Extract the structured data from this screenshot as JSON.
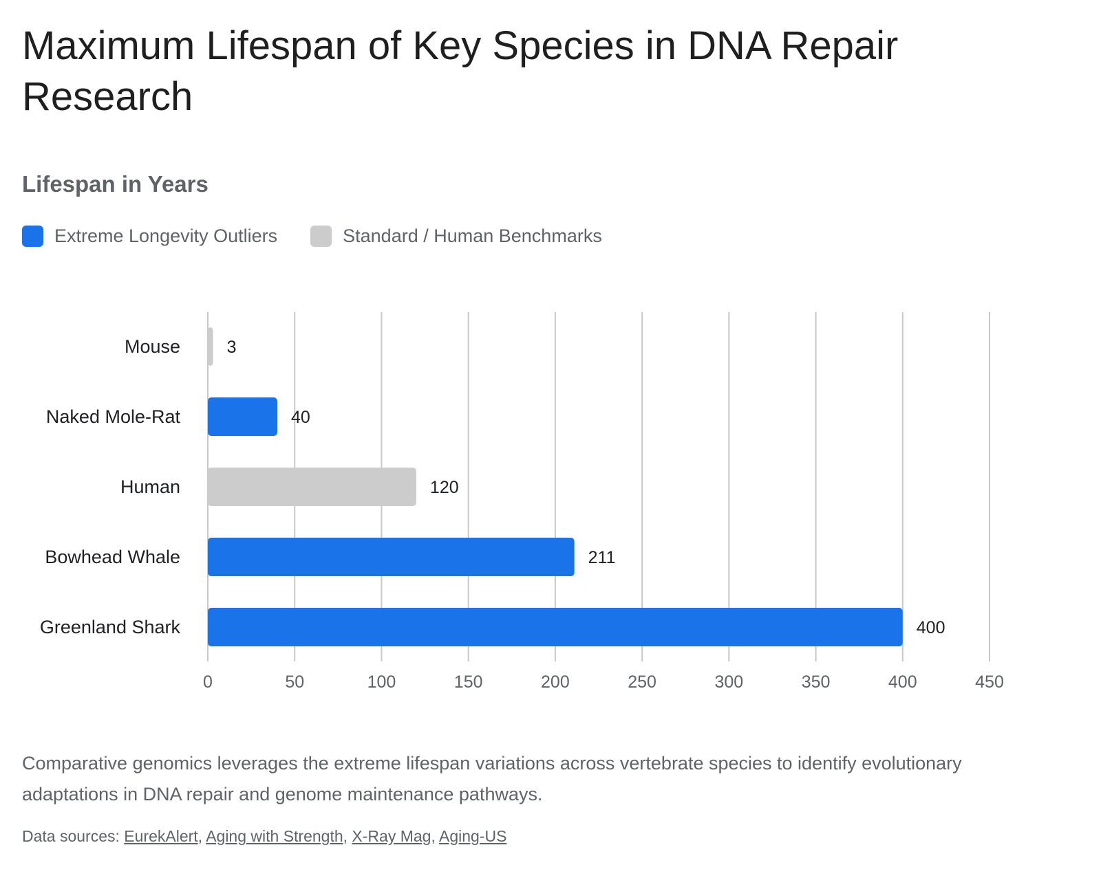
{
  "header": {
    "title": "Maximum Lifespan of Key Species in DNA Repair Research",
    "subtitle": "Lifespan in Years"
  },
  "legend": {
    "items": [
      {
        "label": "Extreme Longevity Outliers",
        "color": "#1a73e8"
      },
      {
        "label": "Standard / Human Benchmarks",
        "color": "#cccccc"
      }
    ]
  },
  "chart_data": {
    "type": "bar",
    "orientation": "horizontal",
    "categories": [
      "Mouse",
      "Naked Mole-Rat",
      "Human",
      "Bowhead Whale",
      "Greenland Shark"
    ],
    "values": [
      3,
      40,
      120,
      211,
      400
    ],
    "groups": [
      "Standard / Human Benchmarks",
      "Extreme Longevity Outliers",
      "Standard / Human Benchmarks",
      "Extreme Longevity Outliers",
      "Extreme Longevity Outliers"
    ],
    "colors": [
      "#cccccc",
      "#1a73e8",
      "#cccccc",
      "#1a73e8",
      "#1a73e8"
    ],
    "data_labels": [
      "3",
      "40",
      "120",
      "211",
      "400"
    ],
    "x_ticks": [
      0,
      50,
      100,
      150,
      200,
      250,
      300,
      350,
      400,
      450
    ],
    "xlim": [
      0,
      450
    ],
    "grid": "vertical",
    "legend_position": "top-left"
  },
  "footer": {
    "description": "Comparative genomics leverages the extreme lifespan variations across vertebrate species to identify evolutionary adaptations in DNA repair and genome maintenance pathways.",
    "sources_prefix": "Data sources: ",
    "sources": [
      "EurekAlert",
      "Aging with Strength",
      "X-Ray Mag",
      "Aging-US"
    ],
    "separator": ", "
  }
}
